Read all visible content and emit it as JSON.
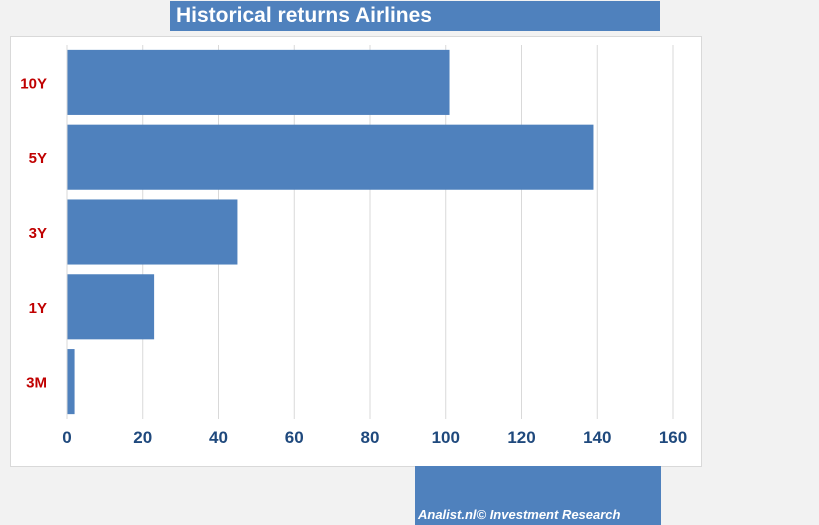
{
  "title": "Historical returns Airlines",
  "footer": "Analist.nl© Investment Research",
  "colors": {
    "bar": "#4f81bd",
    "category_label": "#c00000",
    "tick_label": "#1f497d",
    "grid": "#d9d9d9",
    "title_background": "#4f81bd"
  },
  "chart_data": {
    "type": "bar",
    "orientation": "horizontal",
    "categories": [
      "10Y",
      "5Y",
      "3Y",
      "1Y",
      "3M"
    ],
    "values": [
      101,
      139,
      45,
      23,
      2
    ],
    "xlim": [
      0,
      160
    ],
    "xticks": [
      0,
      20,
      40,
      60,
      80,
      100,
      120,
      140,
      160
    ],
    "grid": "vertical",
    "legend": "none"
  }
}
